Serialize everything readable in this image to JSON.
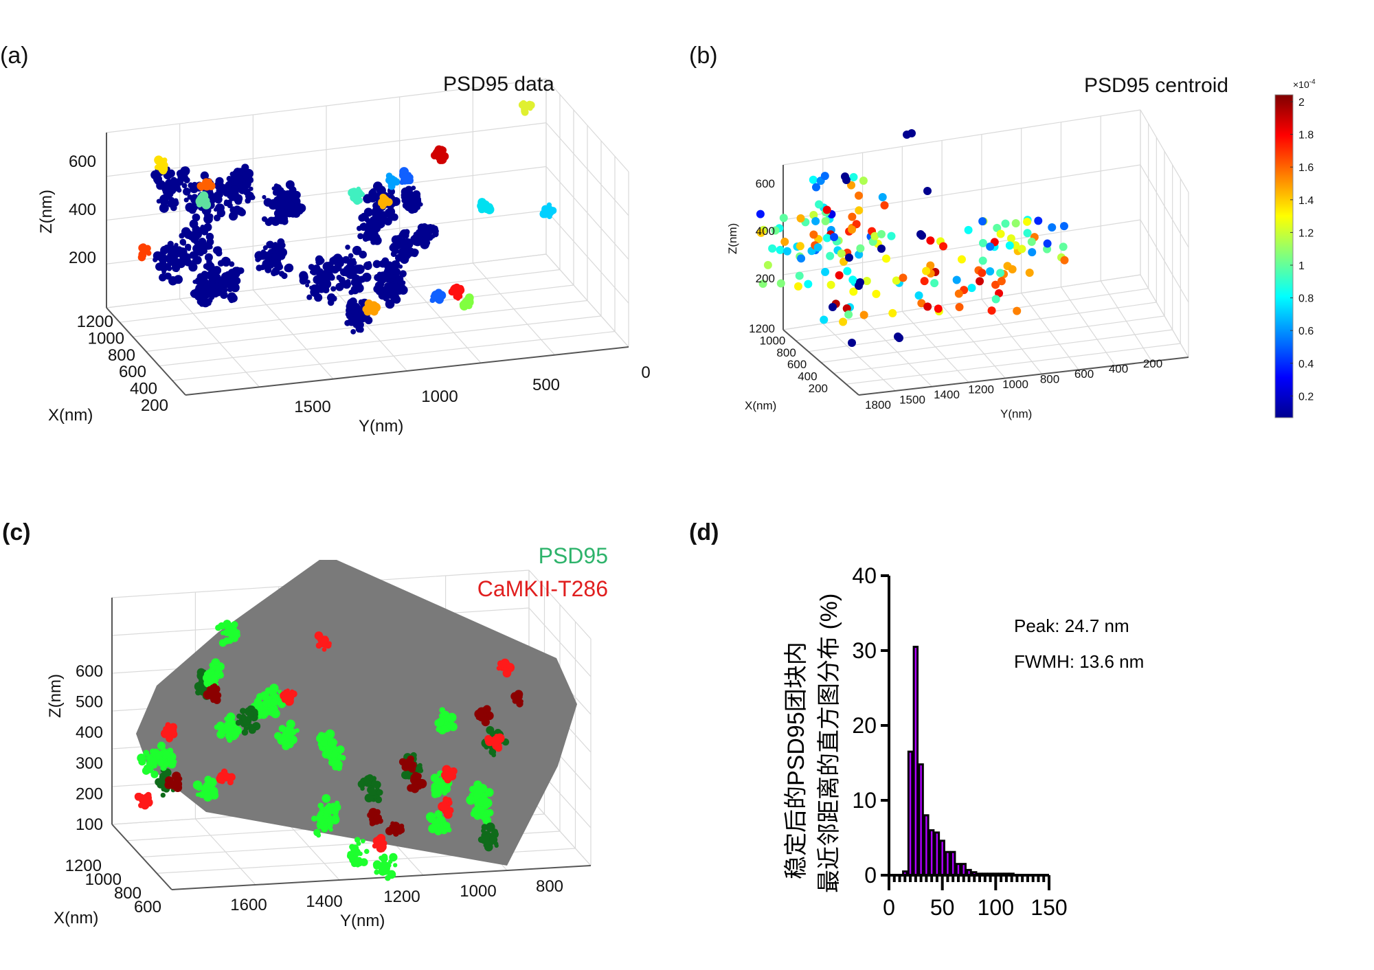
{
  "panels": {
    "a": {
      "label": "(a)",
      "title": "PSD95 data",
      "z_label": "Z(nm)",
      "x_label": "X(nm)",
      "y_label": "Y(nm)",
      "z_ticks": [
        "200",
        "400",
        "600"
      ],
      "x_ticks": [
        "1200",
        "1000",
        "800",
        "600",
        "400",
        "200"
      ],
      "y_ticks": [
        "1500",
        "1000",
        "500",
        "0"
      ],
      "dominant_color": "#00008f"
    },
    "b": {
      "label": "(b)",
      "title": "PSD95 centroid",
      "z_label": "Z(nm)",
      "x_label": "X(nm)",
      "y_label": "Y(nm)",
      "z_ticks": [
        "200",
        "400",
        "600"
      ],
      "x_ticks": [
        "1200",
        "1000",
        "800",
        "600",
        "400",
        "200"
      ],
      "y_ticks": [
        "1800",
        "1500",
        "1400",
        "1200",
        "1000",
        "800",
        "600",
        "400",
        "200"
      ],
      "colorbar": {
        "exponent": "×10",
        "exponent_power": "-4",
        "ticks": [
          "2",
          "1.8",
          "1.6",
          "1.4",
          "1.2",
          "1",
          "0.8",
          "0.6",
          "0.4",
          "0.2"
        ],
        "colormap": "jet"
      }
    },
    "c": {
      "label": "(c)",
      "legend": [
        {
          "name": "PSD95",
          "color": "#2eb36b"
        },
        {
          "name": "CaMKII-T286",
          "color": "#e01e1e"
        }
      ],
      "z_label": "Z(nm)",
      "x_label": "X(nm)",
      "y_label": "Y(nm)",
      "z_ticks": [
        "600",
        "500",
        "400",
        "300",
        "200",
        "100"
      ],
      "x_ticks": [
        "1200",
        "1000",
        "800",
        "600"
      ],
      "y_ticks": [
        "1600",
        "1400",
        "1200",
        "1000",
        "800"
      ],
      "hull_color": "#7a7a7a"
    },
    "d": {
      "label": "(d)",
      "ylabel_line1": "稳定后的PSD95团块内",
      "ylabel_line2": "最近邻距离的直方图分布 (%)",
      "annotation_peak": "Peak: 24.7 nm",
      "annotation_fwhm": "FWMH: 13.6 nm"
    }
  },
  "chart_data": [
    {
      "panel": "a",
      "type": "scatter",
      "title": "PSD95 data",
      "projection": "3d",
      "xlabel": "X(nm)",
      "ylabel": "Y(nm)",
      "zlabel": "Z(nm)",
      "ylim": [
        0,
        1800
      ],
      "xlim": [
        200,
        1200
      ],
      "zlim": [
        0,
        700
      ],
      "grid": true
    },
    {
      "panel": "b",
      "type": "scatter",
      "title": "PSD95 centroid",
      "projection": "3d",
      "xlabel": "X(nm)",
      "ylabel": "Y(nm)",
      "zlabel": "Z(nm)",
      "colorbar_range": [
        0.1,
        2.05
      ],
      "colorbar_scale": "×10^-4",
      "grid": true
    },
    {
      "panel": "c",
      "type": "scatter",
      "projection": "3d",
      "legend": [
        "PSD95",
        "CaMKII-T286"
      ],
      "legend_position": "top-right",
      "xlabel": "X(nm)",
      "ylabel": "Y(nm)",
      "zlabel": "Z(nm)",
      "grid": true
    },
    {
      "panel": "d",
      "type": "bar",
      "title": "",
      "xlabel": "",
      "ylabel": "稳定后的PSD95团块内 最近邻距离的直方图分布 (%)",
      "x": [
        15,
        20,
        25,
        30,
        35,
        40,
        45,
        50,
        55,
        60,
        65,
        70,
        75,
        80,
        85,
        90,
        95,
        100,
        105,
        110,
        115
      ],
      "values": [
        0.5,
        16.5,
        30.5,
        14.8,
        8.0,
        6.0,
        5.7,
        4.6,
        3.1,
        3.1,
        1.5,
        1.5,
        0.7,
        0.4,
        0.2,
        0.2,
        0.2,
        0.2,
        0.2,
        0.2,
        0.2
      ],
      "xlim": [
        0,
        150
      ],
      "ylim": [
        0,
        40
      ],
      "xticks": [
        "0",
        "50",
        "100",
        "150"
      ],
      "yticks": [
        "0",
        "10",
        "20",
        "30",
        "40"
      ],
      "bar_color": "#b000ff",
      "annotations": [
        "Peak: 24.7 nm",
        "FWMH: 13.6 nm"
      ],
      "grid": false
    }
  ]
}
